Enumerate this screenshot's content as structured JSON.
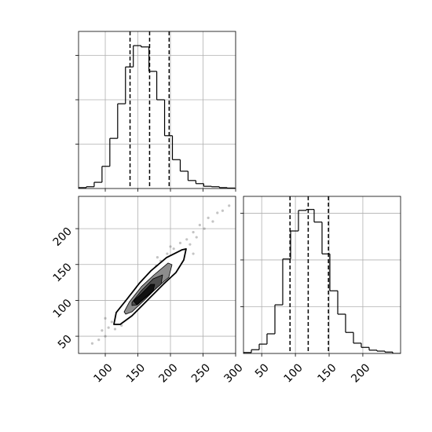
{
  "chart_data": [
    {
      "type": "histogram",
      "color": "#000000",
      "grid": true,
      "xtick_labels": false,
      "ytick_labels": false,
      "bins": [
        59,
        71,
        83,
        95,
        107,
        119,
        131,
        143,
        155,
        167,
        179,
        191,
        203,
        215,
        227,
        239,
        251,
        263,
        275,
        287,
        299
      ],
      "values": [
        0.02,
        0.04,
        0.14,
        0.5,
        1.13,
        1.91,
        2.74,
        3.22,
        3.19,
        2.64,
        2.0,
        1.19,
        0.65,
        0.39,
        0.18,
        0.11,
        0.05,
        0.04,
        0.02,
        0.01
      ],
      "quantiles": [
        138,
        168,
        198
      ],
      "xlim": [
        59,
        300
      ],
      "xticks": [
        100,
        150,
        200,
        250,
        300
      ],
      "ylim": [
        0,
        3.54
      ],
      "yticks": [
        1,
        2,
        3
      ]
    },
    {
      "type": "scatter",
      "color": "#555555",
      "grid": true,
      "xtick_labels": true,
      "ytick_labels": true,
      "points": [
        [
          80,
          40
        ],
        [
          90,
          45
        ],
        [
          95,
          58
        ],
        [
          100,
          50
        ],
        [
          105,
          62
        ],
        [
          110,
          70
        ],
        [
          115,
          60
        ],
        [
          118,
          80
        ],
        [
          122,
          72
        ],
        [
          125,
          88
        ],
        [
          130,
          80
        ],
        [
          132,
          95
        ],
        [
          138,
          90
        ],
        [
          140,
          105
        ],
        [
          145,
          98
        ],
        [
          148,
          112
        ],
        [
          152,
          105
        ],
        [
          155,
          125
        ],
        [
          160,
          115
        ],
        [
          162,
          130
        ],
        [
          168,
          122
        ],
        [
          170,
          140
        ],
        [
          175,
          130
        ],
        [
          178,
          148
        ],
        [
          182,
          138
        ],
        [
          185,
          155
        ],
        [
          190,
          145
        ],
        [
          195,
          165
        ],
        [
          200,
          155
        ],
        [
          205,
          172
        ],
        [
          210,
          162
        ],
        [
          215,
          180
        ],
        [
          220,
          168
        ],
        [
          225,
          185
        ],
        [
          230,
          178
        ],
        [
          235,
          195
        ],
        [
          240,
          188
        ],
        [
          245,
          205
        ],
        [
          252,
          200
        ],
        [
          258,
          215
        ],
        [
          265,
          210
        ],
        [
          272,
          222
        ],
        [
          280,
          225
        ],
        [
          290,
          232
        ],
        [
          100,
          75
        ],
        [
          150,
          90
        ],
        [
          200,
          175
        ],
        [
          235,
          165
        ],
        [
          125,
          65
        ],
        [
          180,
          160
        ]
      ],
      "contours": [
        {
          "fill": "#ffffff",
          "x": [
            113.2,
            116.8,
            131.3,
            153,
            169.8,
            194,
            218,
            224,
            220.4,
            208.4,
            189,
            165,
            141,
            122.9
          ],
          "y": [
            66.5,
            83,
            99.4,
            124.6,
            141,
            159.6,
            170.6,
            171.7,
            156.3,
            138.8,
            122.4,
            100.5,
            78.6,
            66.5
          ]
        },
        {
          "fill": "#8c8c8c",
          "x": [
            128.9,
            137.3,
            155.4,
            174.7,
            196.3,
            202.4,
            197.5,
            179.5,
            159,
            140.9,
            131.3
          ],
          "y": [
            84,
            98.3,
            119.1,
            135.5,
            152,
            149.8,
            132.2,
            118,
            99.4,
            84,
            80.8
          ]
        },
        {
          "fill": "#4d4d4d",
          "x": [
            140.9,
            155.4,
            173.5,
            187.9,
            185.5,
            167.4,
            149.4,
            140.9
          ],
          "y": [
            97.2,
            113.6,
            130,
            135.5,
            122.4,
            108.1,
            93.9,
            92.8
          ]
        },
        {
          "fill": "#111111",
          "x": [
            143.3,
            155.4,
            169.8,
            175.9,
            173.5,
            159,
            148.2
          ],
          "y": [
            99.4,
            109.2,
            122.4,
            122.4,
            113.6,
            102.7,
            93.9
          ]
        }
      ],
      "xlim": [
        59,
        300
      ],
      "xticks": [
        100,
        150,
        200,
        250,
        300
      ],
      "ylim": [
        26,
        245
      ],
      "yticks": [
        50,
        100,
        150,
        200
      ]
    },
    {
      "type": "histogram",
      "color": "#000000",
      "grid": true,
      "xtick_labels": true,
      "ytick_labels": false,
      "bins": [
        23,
        34.7,
        46.3,
        57.9,
        69.6,
        81.2,
        92.9,
        104.5,
        116.2,
        127.8,
        139.5,
        151.1,
        162.8,
        174.4,
        186.1,
        197.7,
        209.4,
        221,
        232.7,
        244.3,
        256
      ],
      "values": [
        0.02,
        0.08,
        0.2,
        0.42,
        1.04,
        2.02,
        2.62,
        3.06,
        3.08,
        2.81,
        2.13,
        1.34,
        0.84,
        0.45,
        0.22,
        0.13,
        0.07,
        0.05,
        0.03,
        0
      ],
      "quantiles": [
        92,
        119,
        149
      ],
      "xlim": [
        23,
        256
      ],
      "xticks": [
        50,
        100,
        150,
        200
      ],
      "ylim": [
        0,
        3.36
      ],
      "yticks": [
        1,
        2,
        3
      ]
    }
  ]
}
